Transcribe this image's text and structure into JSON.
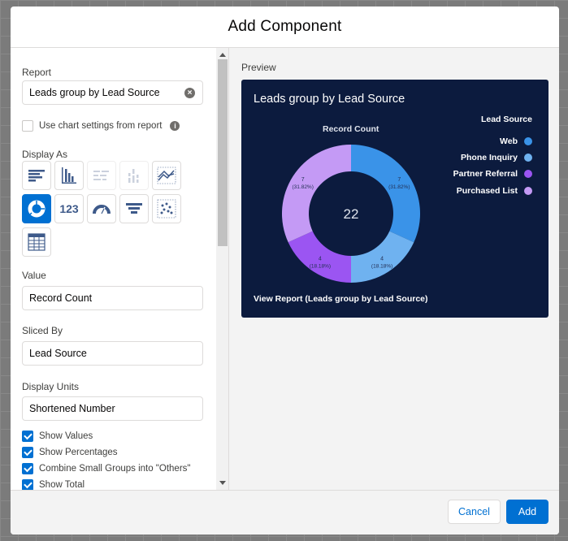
{
  "modal": {
    "title": "Add Component"
  },
  "form": {
    "report_label": "Report",
    "report_value": "Leads group by Lead Source",
    "use_chart_settings_label": "Use chart settings from report",
    "use_chart_settings_checked": false,
    "display_as_label": "Display As",
    "display_types": [
      {
        "icon": "horizontal-bar-chart-icon",
        "selected": false,
        "disabled": false
      },
      {
        "icon": "vertical-bar-chart-icon",
        "selected": false,
        "disabled": false
      },
      {
        "icon": "stacked-horizontal-bar-icon",
        "selected": false,
        "disabled": true
      },
      {
        "icon": "stacked-vertical-bar-icon",
        "selected": false,
        "disabled": true
      },
      {
        "icon": "line-chart-icon",
        "selected": false,
        "disabled": false
      },
      {
        "icon": "donut-chart-icon",
        "selected": true,
        "disabled": false
      },
      {
        "icon": "metric-icon",
        "selected": false,
        "disabled": false,
        "text": "123"
      },
      {
        "icon": "gauge-icon",
        "selected": false,
        "disabled": false
      },
      {
        "icon": "funnel-icon",
        "selected": false,
        "disabled": false
      },
      {
        "icon": "scatter-chart-icon",
        "selected": false,
        "disabled": false
      },
      {
        "icon": "table-icon",
        "selected": false,
        "disabled": false
      }
    ],
    "value_label": "Value",
    "value_value": "Record Count",
    "sliced_by_label": "Sliced By",
    "sliced_by_value": "Lead Source",
    "display_units_label": "Display Units",
    "display_units_value": "Shortened Number",
    "options": [
      {
        "label": "Show Values",
        "checked": true
      },
      {
        "label": "Show Percentages",
        "checked": true
      },
      {
        "label": "Combine Small Groups into \"Others\"",
        "checked": true
      },
      {
        "label": "Show Total",
        "checked": true
      }
    ]
  },
  "preview": {
    "label": "Preview",
    "view_report_link": "View Report (Leads group by Lead Source)"
  },
  "chart_data": {
    "type": "donut",
    "title": "Leads group by Lead Source",
    "subtitle": "Record Count",
    "legend_title": "Lead Source",
    "legend_position": "right",
    "total": "22",
    "series": [
      {
        "name": "Web",
        "value": 7,
        "percent": "(31.82%)",
        "color": "#3a93e8"
      },
      {
        "name": "Phone Inquiry",
        "value": 4,
        "percent": "(18.18%)",
        "color": "#6fb2f0"
      },
      {
        "name": "Partner Referral",
        "value": 4,
        "percent": "(18.18%)",
        "color": "#9b55f2"
      },
      {
        "name": "Purchased List",
        "value": 7,
        "percent": "(31.82%)",
        "color": "#c49af5"
      }
    ]
  },
  "footer": {
    "cancel_label": "Cancel",
    "add_label": "Add"
  }
}
